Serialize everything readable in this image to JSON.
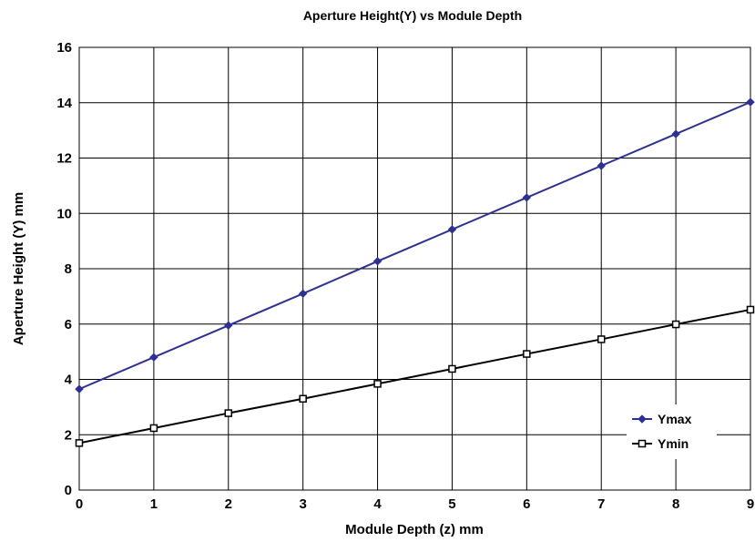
{
  "chart_data": {
    "type": "line",
    "title": "Aperture Height(Y) vs Module Depth",
    "xlabel": "Module Depth (z) mm",
    "ylabel": "Aperture Height (Y) mm",
    "x": [
      0,
      1,
      2,
      3,
      4,
      5,
      6,
      7,
      8,
      9
    ],
    "xlim": [
      0,
      9
    ],
    "ylim": [
      0,
      16
    ],
    "xticks": [
      "0",
      "1",
      "2",
      "3",
      "4",
      "5",
      "6",
      "7",
      "8",
      "9"
    ],
    "yticks": [
      "0",
      "2",
      "4",
      "6",
      "8",
      "10",
      "12",
      "14",
      "16"
    ],
    "grid": true,
    "legend_position": "bottom-right",
    "series": [
      {
        "name": "Ymax",
        "color": "#2e3192",
        "marker": "diamond",
        "values": [
          3.65,
          4.8,
          5.95,
          7.1,
          8.27,
          9.42,
          10.57,
          11.72,
          12.87,
          14.02
        ]
      },
      {
        "name": "Ymin",
        "color": "#000000",
        "marker": "square-open",
        "values": [
          1.7,
          2.24,
          2.78,
          3.3,
          3.84,
          4.38,
          4.92,
          5.45,
          5.99,
          6.52
        ]
      }
    ]
  }
}
